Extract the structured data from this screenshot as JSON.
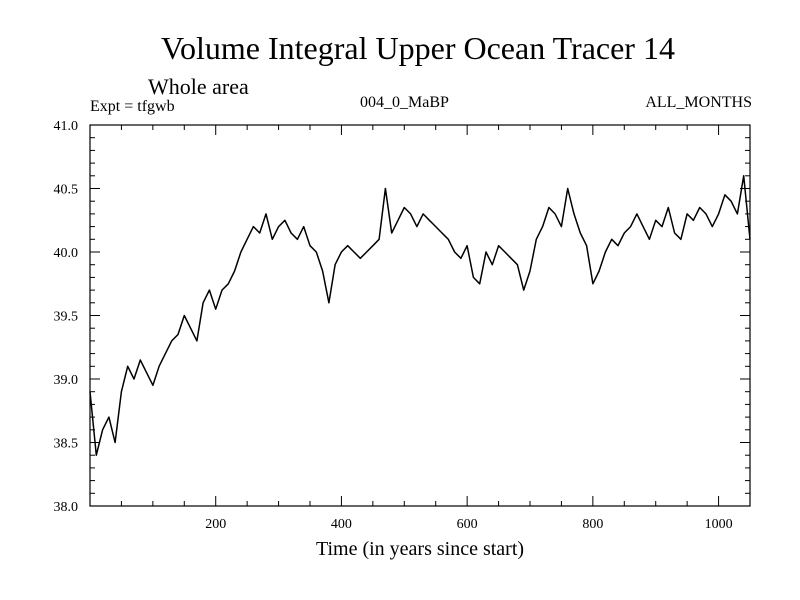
{
  "chart_data": {
    "type": "line",
    "title": "Volume Integral Upper Ocean Tracer 14",
    "subtitle": "Whole area",
    "experiment": "Expt = tfgwb",
    "run_label": "004_0_MaBP",
    "period": "ALL_MONTHS",
    "xlabel": "Time (in years since start)",
    "ylabel": "",
    "xlim": [
      0,
      1050
    ],
    "ylim": [
      38.0,
      41.0
    ],
    "x_ticks": [
      200,
      400,
      600,
      800,
      1000
    ],
    "x_tick_labels": [
      "200",
      "400",
      "600",
      "800",
      "1000"
    ],
    "y_ticks": [
      38.0,
      38.5,
      39.0,
      39.5,
      40.0,
      40.5,
      41.0
    ],
    "y_tick_labels": [
      "38.0",
      "38.5",
      "39.0",
      "39.5",
      "40.0",
      "40.5",
      "41.0"
    ],
    "grid": false,
    "series": [
      {
        "name": "Tracer 14",
        "color": "#000000",
        "x": [
          0,
          10,
          20,
          30,
          40,
          50,
          60,
          70,
          80,
          90,
          100,
          110,
          120,
          130,
          140,
          150,
          160,
          170,
          180,
          190,
          200,
          210,
          220,
          230,
          240,
          250,
          260,
          270,
          280,
          290,
          300,
          310,
          320,
          330,
          340,
          350,
          360,
          370,
          380,
          390,
          400,
          410,
          420,
          430,
          440,
          450,
          460,
          470,
          480,
          490,
          500,
          510,
          520,
          530,
          540,
          550,
          560,
          570,
          580,
          590,
          600,
          610,
          620,
          630,
          640,
          650,
          660,
          670,
          680,
          690,
          700,
          710,
          720,
          730,
          740,
          750,
          760,
          770,
          780,
          790,
          800,
          810,
          820,
          830,
          840,
          850,
          860,
          870,
          880,
          890,
          900,
          910,
          920,
          930,
          940,
          950,
          960,
          970,
          980,
          990,
          1000,
          1010,
          1020,
          1030,
          1040,
          1050
        ],
        "values": [
          38.9,
          38.4,
          38.6,
          38.7,
          38.5,
          38.9,
          39.1,
          39.0,
          39.15,
          39.05,
          38.95,
          39.1,
          39.2,
          39.3,
          39.35,
          39.5,
          39.4,
          39.3,
          39.6,
          39.7,
          39.55,
          39.7,
          39.75,
          39.85,
          40.0,
          40.1,
          40.2,
          40.15,
          40.3,
          40.1,
          40.2,
          40.25,
          40.15,
          40.1,
          40.2,
          40.05,
          40.0,
          39.85,
          39.6,
          39.9,
          40.0,
          40.05,
          40.0,
          39.95,
          40.0,
          40.05,
          40.1,
          40.5,
          40.15,
          40.25,
          40.35,
          40.3,
          40.2,
          40.3,
          40.25,
          40.2,
          40.15,
          40.1,
          40.0,
          39.95,
          40.05,
          39.8,
          39.75,
          40.0,
          39.9,
          40.05,
          40.0,
          39.95,
          39.9,
          39.7,
          39.85,
          40.1,
          40.2,
          40.35,
          40.3,
          40.2,
          40.5,
          40.3,
          40.15,
          40.05,
          39.75,
          39.85,
          40.0,
          40.1,
          40.05,
          40.15,
          40.2,
          40.3,
          40.2,
          40.1,
          40.25,
          40.2,
          40.35,
          40.15,
          40.1,
          40.3,
          40.25,
          40.35,
          40.3,
          40.2,
          40.3,
          40.45,
          40.4,
          40.3,
          40.6,
          40.1
        ]
      }
    ]
  }
}
